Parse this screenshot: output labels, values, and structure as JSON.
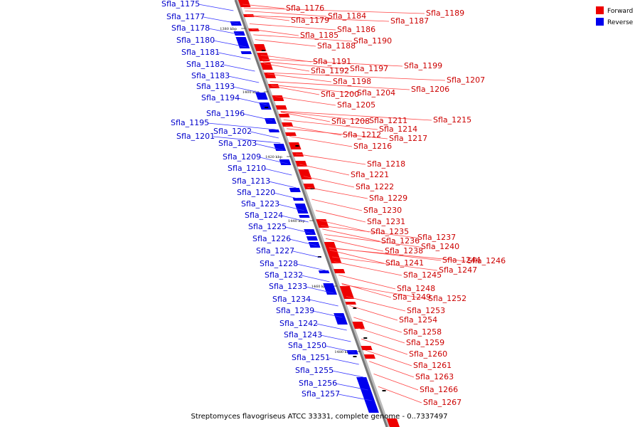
{
  "legend": {
    "forward": {
      "label": "Forward",
      "color": "#ee0000"
    },
    "reverse": {
      "label": "Reverse",
      "color": "#0000ee"
    }
  },
  "caption": "Streptomyces flavogriseus ATCC 33331, complete genome - 0..7337497",
  "scale_ticks": [
    "1380 kbp",
    "1400 kbp",
    "1420 kbp",
    "1440 kbp",
    "1460 kbp",
    "1480 kbp"
  ],
  "genes_forward": [
    "Sfla_1176",
    "Sfla_1179",
    "Sfla_1184",
    "Sfla_1189",
    "Sfla_1187",
    "Sfla_1186",
    "Sfla_1185",
    "Sfla_1190",
    "Sfla_1188",
    "Sfla_1191",
    "Sfla_1199",
    "Sfla_1197",
    "Sfla_1192",
    "Sfla_1207",
    "Sfla_1198",
    "Sfla_1206",
    "Sfla_1204",
    "Sfla_1200",
    "Sfla_1205",
    "Sfla_1215",
    "Sfla_1211",
    "Sfla_1208",
    "Sfla_1214",
    "Sfla_1212",
    "Sfla_1217",
    "Sfla_1216",
    "Sfla_1218",
    "Sfla_1221",
    "Sfla_1222",
    "Sfla_1229",
    "Sfla_1230",
    "Sfla_1231",
    "Sfla_1235",
    "Sfla_1237",
    "Sfla_1236",
    "Sfla_1240",
    "Sfla_1238",
    "Sfla_1244",
    "Sfla_1246",
    "Sfla_1241",
    "Sfla_1247",
    "Sfla_1245",
    "Sfla_1248",
    "Sfla_1249",
    "Sfla_1252",
    "Sfla_1253",
    "Sfla_1254",
    "Sfla_1258",
    "Sfla_1259",
    "Sfla_1260",
    "Sfla_1261",
    "Sfla_1263",
    "Sfla_1266",
    "Sfla_1267"
  ],
  "genes_reverse": [
    "Sfla_1175",
    "Sfla_1177",
    "Sfla_1178",
    "Sfla_1180",
    "Sfla_1181",
    "Sfla_1182",
    "Sfla_1183",
    "Sfla_1193",
    "Sfla_1194",
    "Sfla_1196",
    "Sfla_1195",
    "Sfla_1202",
    "Sfla_1201",
    "Sfla_1203",
    "Sfla_1209",
    "Sfla_1210",
    "Sfla_1213",
    "Sfla_1220",
    "Sfla_1223",
    "Sfla_1224",
    "Sfla_1225",
    "Sfla_1226",
    "Sfla_1227",
    "Sfla_1228",
    "Sfla_1232",
    "Sfla_1233",
    "Sfla_1234",
    "Sfla_1239",
    "Sfla_1242",
    "Sfla_1243",
    "Sfla_1250",
    "Sfla_1251",
    "Sfla_1255",
    "Sfla_1256",
    "Sfla_1257"
  ]
}
